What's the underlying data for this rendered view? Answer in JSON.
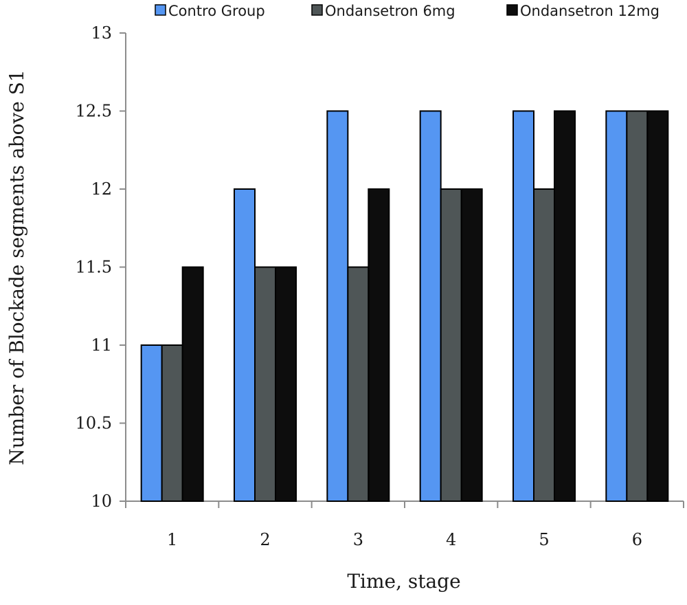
{
  "chart_data": {
    "type": "bar",
    "title": "",
    "xlabel": "Time, stage",
    "ylabel": "Number of Blockade segments above S1",
    "categories": [
      "1",
      "2",
      "3",
      "4",
      "5",
      "6"
    ],
    "series": [
      {
        "name": "Contro Group",
        "color": "#5596f2",
        "values": [
          11,
          12,
          12.5,
          12.5,
          12.5,
          12.5
        ]
      },
      {
        "name": "Ondansetron 6mg",
        "color": "#4f5657",
        "values": [
          11,
          11.5,
          11.5,
          12,
          12,
          12.5
        ]
      },
      {
        "name": "Ondansetron 12mg",
        "color": "#0d0d0d",
        "values": [
          11.5,
          11.5,
          12,
          12,
          12.5,
          12.5
        ]
      }
    ],
    "ylim": [
      10,
      13
    ],
    "yticks": [
      "10",
      "10.5",
      "11",
      "11.5",
      "12",
      "12.5",
      "13"
    ],
    "grid": false,
    "legend_position": "top"
  }
}
